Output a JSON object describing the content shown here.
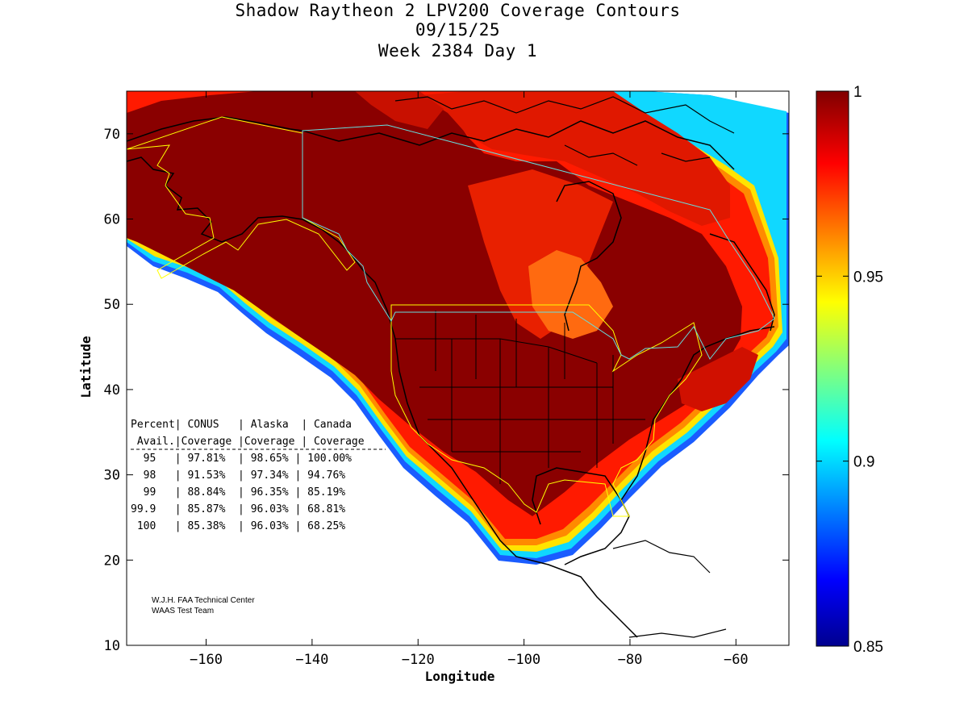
{
  "header": {
    "title_line1": "Shadow Raytheon 2 LPV200 Coverage Contours",
    "title_line2": "09/15/25",
    "title_line3": "Week 2384 Day 1"
  },
  "axes": {
    "xlabel": "Longitude",
    "ylabel": "Latitude",
    "x_ticks": [
      -160,
      -140,
      -120,
      -100,
      -80,
      -60
    ],
    "y_ticks": [
      10,
      20,
      30,
      40,
      50,
      60,
      70
    ],
    "xlim": [
      -175,
      -50
    ],
    "ylim": [
      10,
      75
    ]
  },
  "colorbar": {
    "tick_labels": [
      "1",
      "0.95",
      "0.9",
      "0.85"
    ],
    "range": [
      0.85,
      1.0
    ],
    "colormap": [
      "#00008f",
      "#0000ff",
      "#00ffff",
      "#ffff00",
      "#ff0000",
      "#800000"
    ]
  },
  "table": {
    "header_row1": "Percent| CONUS   | Alaska  | Canada",
    "header_row2": " Avail.|Coverage |Coverage | Coverage",
    "rows": [
      "  95   | 97.81%  | 98.65% | 100.00%",
      "  98   | 91.53%  | 97.34% | 94.76%",
      "  99   | 88.84%  | 96.35% | 85.19%",
      "99.9   | 85.87%  | 96.03% | 68.81%",
      " 100   | 85.38%  | 96.03% | 68.25%"
    ]
  },
  "credits": {
    "line1": "W.J.H. FAA Technical Center",
    "line2": "WAAS Test Team"
  },
  "chart_data": {
    "type": "heatmap",
    "title": "Shadow Raytheon 2 LPV200 Coverage Contours",
    "xlabel": "Longitude",
    "ylabel": "Latitude",
    "xlim": [
      -175,
      -50
    ],
    "ylim": [
      10,
      75
    ],
    "colorbar_range": [
      0.85,
      1.0
    ],
    "coverage_summary": [
      {
        "percent_avail": "95",
        "conus": 97.81,
        "alaska": 98.65,
        "canada": 100.0
      },
      {
        "percent_avail": "98",
        "conus": 91.53,
        "alaska": 97.34,
        "canada": 94.76
      },
      {
        "percent_avail": "99",
        "conus": 88.84,
        "alaska": 96.35,
        "canada": 85.19
      },
      {
        "percent_avail": "99.9",
        "conus": 85.87,
        "alaska": 96.03,
        "canada": 68.81
      },
      {
        "percent_avail": "100",
        "conus": 85.38,
        "alaska": 96.03,
        "canada": 68.25
      }
    ]
  }
}
